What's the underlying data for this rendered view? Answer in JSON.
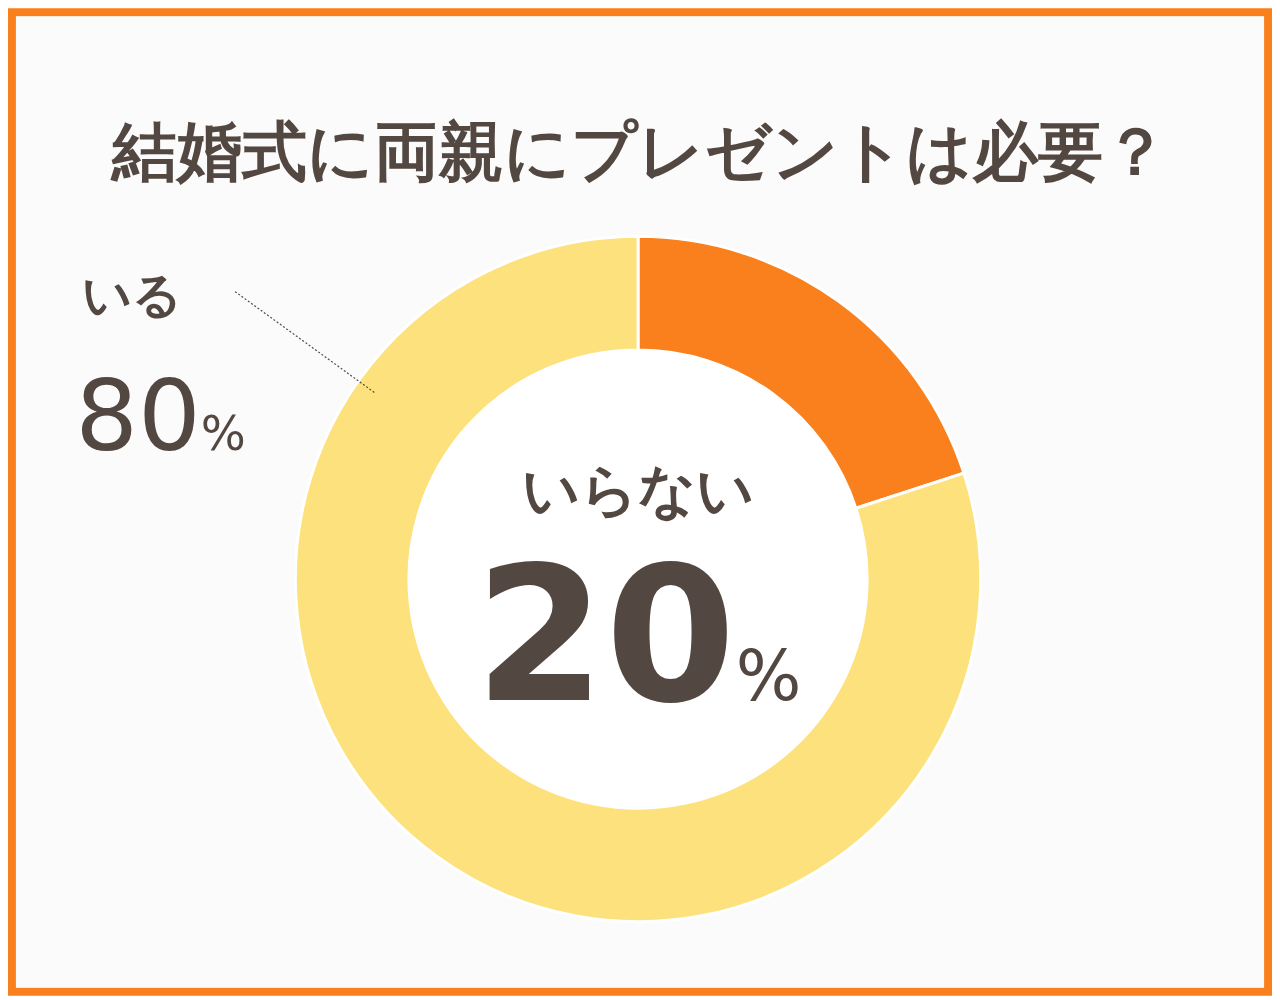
{
  "chart_data": {
    "type": "donut",
    "title": "結婚式に両親にプレゼントは必要？",
    "categories": [
      "いらない",
      "いる"
    ],
    "values": [
      20,
      80
    ],
    "colors": [
      "#f9801c",
      "#fde17c"
    ],
    "value_labels": [
      "20%",
      "80%"
    ]
  }
}
